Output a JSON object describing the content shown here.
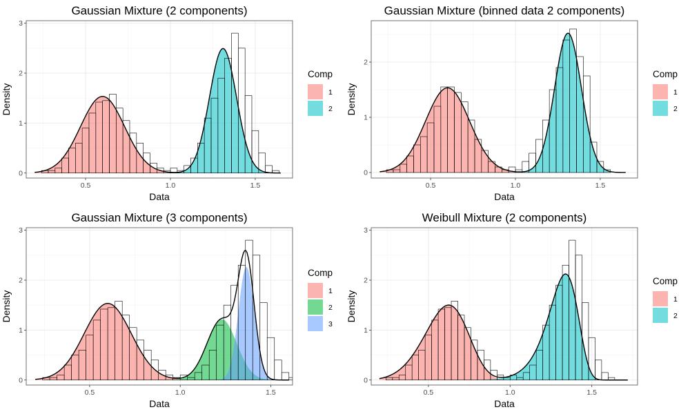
{
  "colors": {
    "comp1": "#F8766D",
    "comp2": "#00BFC4",
    "comp3_green": "#00BA38",
    "comp3_blue": "#619CFF"
  },
  "chart_data": [
    {
      "type": "area",
      "title": "Gaussian Mixture (2 components)",
      "xlabel": "Data",
      "ylabel": "Density",
      "xlim": [
        0.15,
        1.72
      ],
      "ylim": [
        -0.1,
        3.05
      ],
      "x_ticks": [
        "0.5",
        "1.0",
        "1.5"
      ],
      "y_ticks": [
        "0",
        "1",
        "2",
        "3"
      ],
      "grid": true,
      "legend": {
        "title": "Comp",
        "position": "right",
        "items": [
          {
            "label": "1",
            "color": "#F8766D"
          },
          {
            "label": "2",
            "color": "#00BFC4"
          }
        ]
      },
      "components": [
        {
          "name": "1",
          "dist": "normal",
          "weight": 0.5,
          "mean": 0.6,
          "sd": 0.13,
          "color": "#F8766D"
        },
        {
          "name": "2",
          "dist": "normal",
          "weight": 0.5,
          "mean": 1.31,
          "sd": 0.08,
          "color": "#00BFC4"
        }
      ],
      "curve_range": [
        0.2,
        1.65
      ],
      "histogram": {
        "bin_width": 0.04,
        "bin_start": 0.2,
        "values": [
          0,
          0.05,
          0.05,
          0.1,
          0.3,
          0.5,
          0.6,
          0.9,
          1.2,
          1.42,
          1.45,
          1.58,
          1.3,
          1.05,
          0.8,
          0.6,
          0.4,
          0.2,
          0.1,
          0.05,
          0.1,
          0.05,
          0.15,
          0.3,
          0.6,
          1.1,
          1.5,
          1.9,
          2.3,
          2.8,
          2.5,
          1.55,
          0.85,
          0.4,
          0.15,
          0.05
        ]
      }
    },
    {
      "type": "area",
      "title": "Gaussian Mixture (binned data 2 components)",
      "xlabel": "Data",
      "ylabel": "Density",
      "xlim": [
        0.15,
        1.72
      ],
      "ylim": [
        -0.1,
        2.75
      ],
      "x_ticks": [
        "0.5",
        "1.0",
        "1.5"
      ],
      "y_ticks": [
        "0",
        "1",
        "2"
      ],
      "grid": true,
      "legend": {
        "title": "Comp",
        "position": "right",
        "items": [
          {
            "label": "1",
            "color": "#F8766D"
          },
          {
            "label": "2",
            "color": "#00BFC4"
          }
        ]
      },
      "components": [
        {
          "name": "1",
          "dist": "normal",
          "weight": 0.5,
          "mean": 0.6,
          "sd": 0.13,
          "color": "#F8766D"
        },
        {
          "name": "2",
          "dist": "normal",
          "weight": 0.5,
          "mean": 1.31,
          "sd": 0.079,
          "color": "#00BFC4"
        }
      ],
      "curve_range": [
        0.2,
        1.65
      ],
      "histogram": {
        "bin_width": 0.04,
        "bin_start": 0.2,
        "values": [
          0,
          0.05,
          0.05,
          0.15,
          0.3,
          0.5,
          0.65,
          0.9,
          1.2,
          1.55,
          1.55,
          1.45,
          1.28,
          0.95,
          0.6,
          0.4,
          0.2,
          0.1,
          0.05,
          0.1,
          0.05,
          0.2,
          0.35,
          0.6,
          0.95,
          1.5,
          1.9,
          2.4,
          2.6,
          2.1,
          1.75,
          0.55,
          0.2,
          0.05
        ]
      }
    },
    {
      "type": "area",
      "title": "Gaussian Mixture (3 components)",
      "xlabel": "Data",
      "ylabel": "Density",
      "xlim": [
        0.15,
        1.62
      ],
      "ylim": [
        -0.1,
        3.05
      ],
      "x_ticks": [
        "0.5",
        "1.0",
        "1.5"
      ],
      "y_ticks": [
        "0",
        "1",
        "2",
        "3"
      ],
      "grid": true,
      "legend": {
        "title": "Comp",
        "position": "right",
        "items": [
          {
            "label": "1",
            "color": "#F8766D"
          },
          {
            "label": "2",
            "color": "#00BA38"
          },
          {
            "label": "3",
            "color": "#619CFF"
          }
        ]
      },
      "components": [
        {
          "name": "1",
          "dist": "normal",
          "weight": 0.5,
          "mean": 0.6,
          "sd": 0.13,
          "color": "#F8766D"
        },
        {
          "name": "2",
          "dist": "normal",
          "weight": 0.25,
          "mean": 1.23,
          "sd": 0.082,
          "color": "#00BA38"
        },
        {
          "name": "3",
          "dist": "normal",
          "weight": 0.25,
          "mean": 1.365,
          "sd": 0.044,
          "color": "#619CFF"
        }
      ],
      "curve_range": [
        0.2,
        1.6
      ],
      "histogram": {
        "bin_width": 0.04,
        "bin_start": 0.2,
        "values": [
          0,
          0.05,
          0.05,
          0.1,
          0.3,
          0.5,
          0.6,
          0.9,
          1.2,
          1.42,
          1.45,
          1.58,
          1.3,
          1.05,
          0.8,
          0.6,
          0.4,
          0.2,
          0.1,
          0.05,
          0.1,
          0.05,
          0.15,
          0.3,
          0.6,
          1.1,
          1.5,
          1.9,
          2.3,
          2.8,
          2.5,
          1.55,
          0.85,
          0.4,
          0.15,
          0.05
        ]
      }
    },
    {
      "type": "area",
      "title": "Weibull Mixture (2 components)",
      "xlabel": "Data",
      "ylabel": "Density",
      "xlim": [
        0.15,
        1.78
      ],
      "ylim": [
        -0.1,
        3.05
      ],
      "x_ticks": [
        "0.5",
        "1.0",
        "1.5"
      ],
      "y_ticks": [
        "0",
        "1",
        "2",
        "3"
      ],
      "grid": true,
      "legend": {
        "title": "Comp",
        "position": "right",
        "items": [
          {
            "label": "1",
            "color": "#F8766D"
          },
          {
            "label": "2",
            "color": "#00BFC4"
          }
        ]
      },
      "components": [
        {
          "name": "1",
          "dist": "weibull",
          "weight": 0.5,
          "shape": 5.2,
          "scale": 0.65,
          "color": "#F8766D"
        },
        {
          "name": "2",
          "dist": "weibull",
          "weight": 0.5,
          "shape": 15.5,
          "scale": 1.345,
          "color": "#00BFC4"
        }
      ],
      "curve_range": [
        0.2,
        1.72
      ],
      "histogram": {
        "bin_width": 0.04,
        "bin_start": 0.2,
        "values": [
          0,
          0.05,
          0.05,
          0.1,
          0.3,
          0.5,
          0.6,
          0.9,
          1.2,
          1.42,
          1.45,
          1.58,
          1.3,
          1.05,
          0.8,
          0.6,
          0.4,
          0.2,
          0.1,
          0.05,
          0.1,
          0.05,
          0.15,
          0.3,
          0.6,
          1.1,
          1.5,
          1.9,
          2.3,
          2.8,
          2.5,
          1.55,
          0.85,
          0.4,
          0.15,
          0.05
        ]
      }
    }
  ]
}
